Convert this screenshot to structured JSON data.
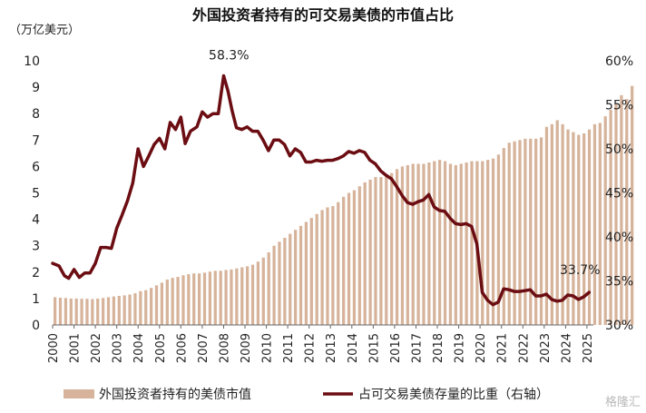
{
  "chart_data": {
    "type": "bar+line",
    "title": "外国投资者持有的可交易美债的市值占比",
    "left_axis_unit": "（万亿美元）",
    "left_ylim": [
      0,
      10
    ],
    "left_ticks": [
      "0",
      "1",
      "2",
      "3",
      "4",
      "5",
      "6",
      "7",
      "8",
      "9",
      "10"
    ],
    "right_ylim": [
      30,
      60
    ],
    "right_ticks": [
      "30%",
      "35%",
      "40%",
      "45%",
      "50%",
      "55%",
      "60%"
    ],
    "x_ticks": [
      "2000",
      "2001",
      "2002",
      "2003",
      "2004",
      "2005",
      "2006",
      "2007",
      "2008",
      "2009",
      "2010",
      "2011",
      "2012",
      "2013",
      "2014",
      "2015",
      "2016",
      "2017",
      "2018",
      "2019",
      "2020",
      "2021",
      "2022",
      "2023",
      "2024",
      "2025"
    ],
    "x_start": 2000.0,
    "x_end": 2025.3,
    "grid": false,
    "legend_position": "bottom",
    "colors": {
      "bar": "#d6b39a",
      "line": "#6b0d12"
    },
    "annotations": [
      {
        "text": "58.3%",
        "x": 2008.25,
        "y": 58.3
      },
      {
        "text": "33.7%",
        "x": 2025.1,
        "y": 33.7
      }
    ],
    "series": [
      {
        "name": "外国投资者持有的美债市值",
        "type": "bar",
        "axis": "left",
        "x_start": 2000.0,
        "step_months": 3,
        "values": [
          1.05,
          1.03,
          1.02,
          1.0,
          1.0,
          0.99,
          0.99,
          0.98,
          1.0,
          1.02,
          1.05,
          1.08,
          1.1,
          1.12,
          1.15,
          1.2,
          1.28,
          1.32,
          1.4,
          1.5,
          1.6,
          1.72,
          1.78,
          1.82,
          1.88,
          1.92,
          1.95,
          1.95,
          1.98,
          2.02,
          2.05,
          2.05,
          2.08,
          2.1,
          2.14,
          2.18,
          2.22,
          2.28,
          2.4,
          2.55,
          2.75,
          3.0,
          3.15,
          3.3,
          3.45,
          3.6,
          3.75,
          3.9,
          4.05,
          4.2,
          4.35,
          4.45,
          4.5,
          4.65,
          4.85,
          5.0,
          5.1,
          5.25,
          5.4,
          5.5,
          5.6,
          5.6,
          5.65,
          5.75,
          5.9,
          6.0,
          6.05,
          6.1,
          6.1,
          6.1,
          6.15,
          6.2,
          6.25,
          6.2,
          6.1,
          6.05,
          6.1,
          6.15,
          6.2,
          6.2,
          6.2,
          6.25,
          6.3,
          6.45,
          6.7,
          6.9,
          6.95,
          7.0,
          7.05,
          7.05,
          7.05,
          7.1,
          7.5,
          7.6,
          7.75,
          7.6,
          7.4,
          7.3,
          7.2,
          7.25,
          7.4,
          7.6,
          7.65,
          7.9,
          8.15,
          8.35,
          8.7,
          8.55,
          9.05
        ]
      },
      {
        "name": "占可交易美债存量的比重（右轴）",
        "type": "line",
        "axis": "right",
        "points": [
          [
            2000.0,
            37.0
          ],
          [
            2000.3,
            36.7
          ],
          [
            2000.55,
            35.6
          ],
          [
            2000.75,
            35.3
          ],
          [
            2001.0,
            36.3
          ],
          [
            2001.25,
            35.4
          ],
          [
            2001.5,
            35.9
          ],
          [
            2001.75,
            35.9
          ],
          [
            2002.0,
            37.0
          ],
          [
            2002.25,
            38.8
          ],
          [
            2002.5,
            38.8
          ],
          [
            2002.75,
            38.7
          ],
          [
            2003.0,
            41.0
          ],
          [
            2003.25,
            42.5
          ],
          [
            2003.5,
            44.1
          ],
          [
            2003.75,
            46.1
          ],
          [
            2004.0,
            50.0
          ],
          [
            2004.25,
            48.0
          ],
          [
            2004.5,
            49.2
          ],
          [
            2004.75,
            50.5
          ],
          [
            2005.0,
            51.2
          ],
          [
            2005.25,
            50.0
          ],
          [
            2005.5,
            53.0
          ],
          [
            2005.75,
            52.2
          ],
          [
            2006.0,
            53.6
          ],
          [
            2006.2,
            50.6
          ],
          [
            2006.45,
            52.0
          ],
          [
            2006.75,
            52.5
          ],
          [
            2007.0,
            54.2
          ],
          [
            2007.25,
            53.6
          ],
          [
            2007.5,
            54.0
          ],
          [
            2007.75,
            54.0
          ],
          [
            2008.0,
            58.3
          ],
          [
            2008.2,
            56.6
          ],
          [
            2008.4,
            54.3
          ],
          [
            2008.6,
            52.4
          ],
          [
            2008.85,
            52.2
          ],
          [
            2009.1,
            52.5
          ],
          [
            2009.35,
            52.0
          ],
          [
            2009.6,
            52.0
          ],
          [
            2009.85,
            51.0
          ],
          [
            2010.1,
            49.8
          ],
          [
            2010.35,
            51.0
          ],
          [
            2010.6,
            51.0
          ],
          [
            2010.85,
            50.5
          ],
          [
            2011.1,
            49.2
          ],
          [
            2011.35,
            50.0
          ],
          [
            2011.6,
            49.6
          ],
          [
            2011.85,
            48.5
          ],
          [
            2012.1,
            48.5
          ],
          [
            2012.35,
            48.7
          ],
          [
            2012.6,
            48.6
          ],
          [
            2012.85,
            48.7
          ],
          [
            2013.1,
            48.7
          ],
          [
            2013.35,
            48.9
          ],
          [
            2013.6,
            49.2
          ],
          [
            2013.85,
            49.7
          ],
          [
            2014.1,
            49.5
          ],
          [
            2014.35,
            49.8
          ],
          [
            2014.6,
            49.6
          ],
          [
            2014.85,
            48.7
          ],
          [
            2015.1,
            48.3
          ],
          [
            2015.35,
            47.5
          ],
          [
            2015.6,
            47.0
          ],
          [
            2015.85,
            46.6
          ],
          [
            2016.1,
            45.7
          ],
          [
            2016.35,
            44.7
          ],
          [
            2016.6,
            43.9
          ],
          [
            2016.85,
            43.7
          ],
          [
            2017.1,
            44.0
          ],
          [
            2017.35,
            44.2
          ],
          [
            2017.6,
            44.8
          ],
          [
            2017.85,
            43.4
          ],
          [
            2018.1,
            43.0
          ],
          [
            2018.35,
            42.9
          ],
          [
            2018.6,
            42.1
          ],
          [
            2018.85,
            41.5
          ],
          [
            2019.1,
            41.4
          ],
          [
            2019.35,
            41.5
          ],
          [
            2019.6,
            41.2
          ],
          [
            2019.85,
            39.2
          ],
          [
            2020.1,
            33.7
          ],
          [
            2020.35,
            32.8
          ],
          [
            2020.6,
            32.3
          ],
          [
            2020.85,
            32.6
          ],
          [
            2021.1,
            34.1
          ],
          [
            2021.35,
            34.0
          ],
          [
            2021.6,
            33.8
          ],
          [
            2021.85,
            33.8
          ],
          [
            2022.1,
            33.9
          ],
          [
            2022.35,
            34.0
          ],
          [
            2022.6,
            33.3
          ],
          [
            2022.85,
            33.3
          ],
          [
            2023.1,
            33.5
          ],
          [
            2023.35,
            32.9
          ],
          [
            2023.6,
            32.7
          ],
          [
            2023.85,
            32.8
          ],
          [
            2024.1,
            33.4
          ],
          [
            2024.35,
            33.3
          ],
          [
            2024.6,
            32.9
          ],
          [
            2024.85,
            33.2
          ],
          [
            2025.1,
            33.7
          ]
        ]
      }
    ]
  },
  "watermark": "格隆汇"
}
